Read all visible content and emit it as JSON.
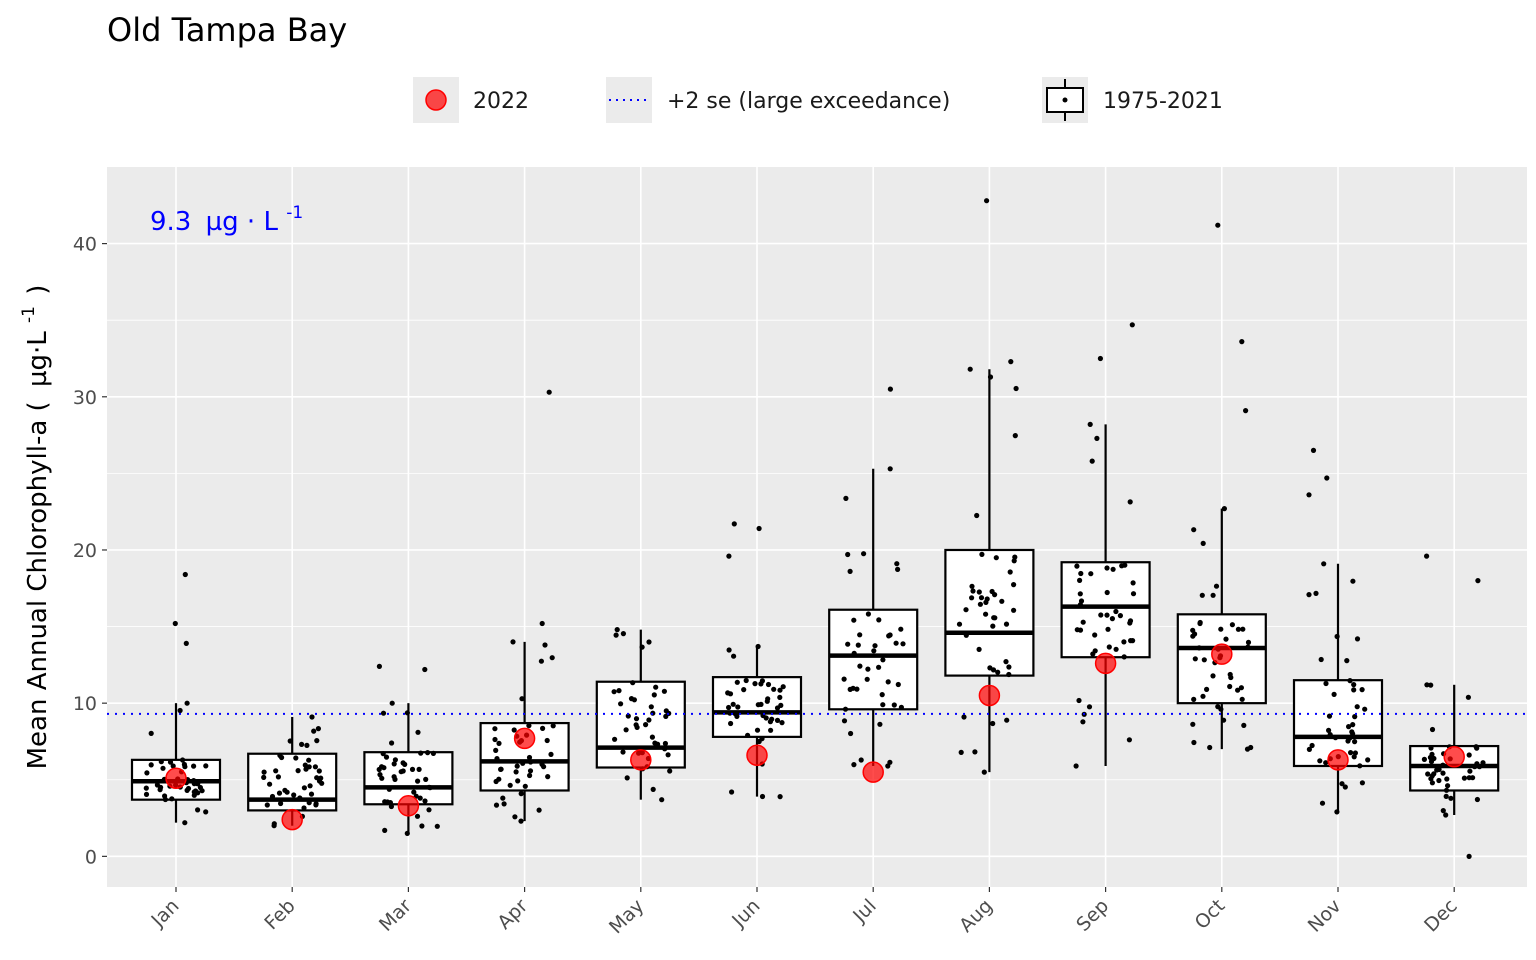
{
  "chart_data": {
    "type": "box",
    "title": "Old Tampa Bay",
    "ylabel": "Mean Annual Chlorophyll-a (",
    "ylabel_units": "µg·L",
    "ylabel_exponent": "-1",
    "ylabel_close": ")",
    "ylim": [
      -2,
      45
    ],
    "yticks": [
      0,
      10,
      20,
      30,
      40
    ],
    "categories": [
      "Jan",
      "Feb",
      "Mar",
      "Apr",
      "May",
      "Jun",
      "Jul",
      "Aug",
      "Sep",
      "Oct",
      "Nov",
      "Dec"
    ],
    "legend": {
      "position": "top",
      "items": [
        {
          "key": "point",
          "label": "2022",
          "color": "#ff0000"
        },
        {
          "key": "line",
          "label": "+2 se (large exceedance)",
          "color": "#0000ff"
        },
        {
          "key": "box",
          "label": "1975-2021",
          "color": "#000000"
        }
      ]
    },
    "threshold": {
      "value": 9.3,
      "color": "#0000ff",
      "label": "9.3",
      "units": "µg · L",
      "exponent": "-1"
    },
    "series": [
      {
        "name": "1975-2021",
        "boxes": [
          {
            "category": "Jan",
            "whisker_low": 2.2,
            "q1": 3.7,
            "median": 4.9,
            "q3": 6.3,
            "whisker_high": 10.0,
            "outliers": [
              13.9,
              15.2,
              18.4
            ]
          },
          {
            "category": "Feb",
            "whisker_low": 2.0,
            "q1": 3.0,
            "median": 3.7,
            "q3": 6.7,
            "whisker_high": 9.1,
            "outliers": []
          },
          {
            "category": "Mar",
            "whisker_low": 1.5,
            "q1": 3.4,
            "median": 4.5,
            "q3": 6.8,
            "whisker_high": 10.0,
            "outliers": [
              12.2,
              12.4
            ]
          },
          {
            "category": "Apr",
            "whisker_low": 2.3,
            "q1": 4.3,
            "median": 6.2,
            "q3": 8.7,
            "whisker_high": 14.0,
            "outliers": [
              15.2,
              30.3
            ]
          },
          {
            "category": "May",
            "whisker_low": 3.7,
            "q1": 5.8,
            "median": 7.1,
            "q3": 11.4,
            "whisker_high": 14.8,
            "outliers": []
          },
          {
            "category": "Jun",
            "whisker_low": 3.9,
            "q1": 7.8,
            "median": 9.4,
            "q3": 11.7,
            "whisker_high": 13.7,
            "outliers": [
              19.6,
              21.4,
              21.7
            ]
          },
          {
            "category": "Jul",
            "whisker_low": 5.9,
            "q1": 9.6,
            "median": 13.1,
            "q3": 16.1,
            "whisker_high": 25.3,
            "outliers": [
              30.5
            ]
          },
          {
            "category": "Aug",
            "whisker_low": 5.5,
            "q1": 11.8,
            "median": 14.6,
            "q3": 20.0,
            "whisker_high": 31.8,
            "outliers": [
              32.3,
              42.8
            ]
          },
          {
            "category": "Sep",
            "whisker_low": 5.9,
            "q1": 13.0,
            "median": 16.3,
            "q3": 19.2,
            "whisker_high": 28.2,
            "outliers": [
              32.5,
              34.7
            ]
          },
          {
            "category": "Oct",
            "whisker_low": 7.0,
            "q1": 10.0,
            "median": 13.6,
            "q3": 15.8,
            "whisker_high": 22.7,
            "outliers": [
              29.1,
              33.6,
              41.2
            ]
          },
          {
            "category": "Nov",
            "whisker_low": 2.9,
            "q1": 5.9,
            "median": 7.8,
            "q3": 11.5,
            "whisker_high": 19.1,
            "outliers": [
              23.6,
              24.7,
              26.5
            ]
          },
          {
            "category": "Dec",
            "whisker_low": 2.7,
            "q1": 4.3,
            "median": 5.9,
            "q3": 7.2,
            "whisker_high": 11.2,
            "outliers": [
              0.0,
              18.0,
              19.6
            ]
          }
        ]
      },
      {
        "name": "2022",
        "values": [
          5.1,
          2.4,
          3.3,
          7.7,
          6.3,
          6.6,
          5.5,
          10.5,
          12.6,
          13.2,
          6.3,
          6.5
        ]
      }
    ]
  }
}
